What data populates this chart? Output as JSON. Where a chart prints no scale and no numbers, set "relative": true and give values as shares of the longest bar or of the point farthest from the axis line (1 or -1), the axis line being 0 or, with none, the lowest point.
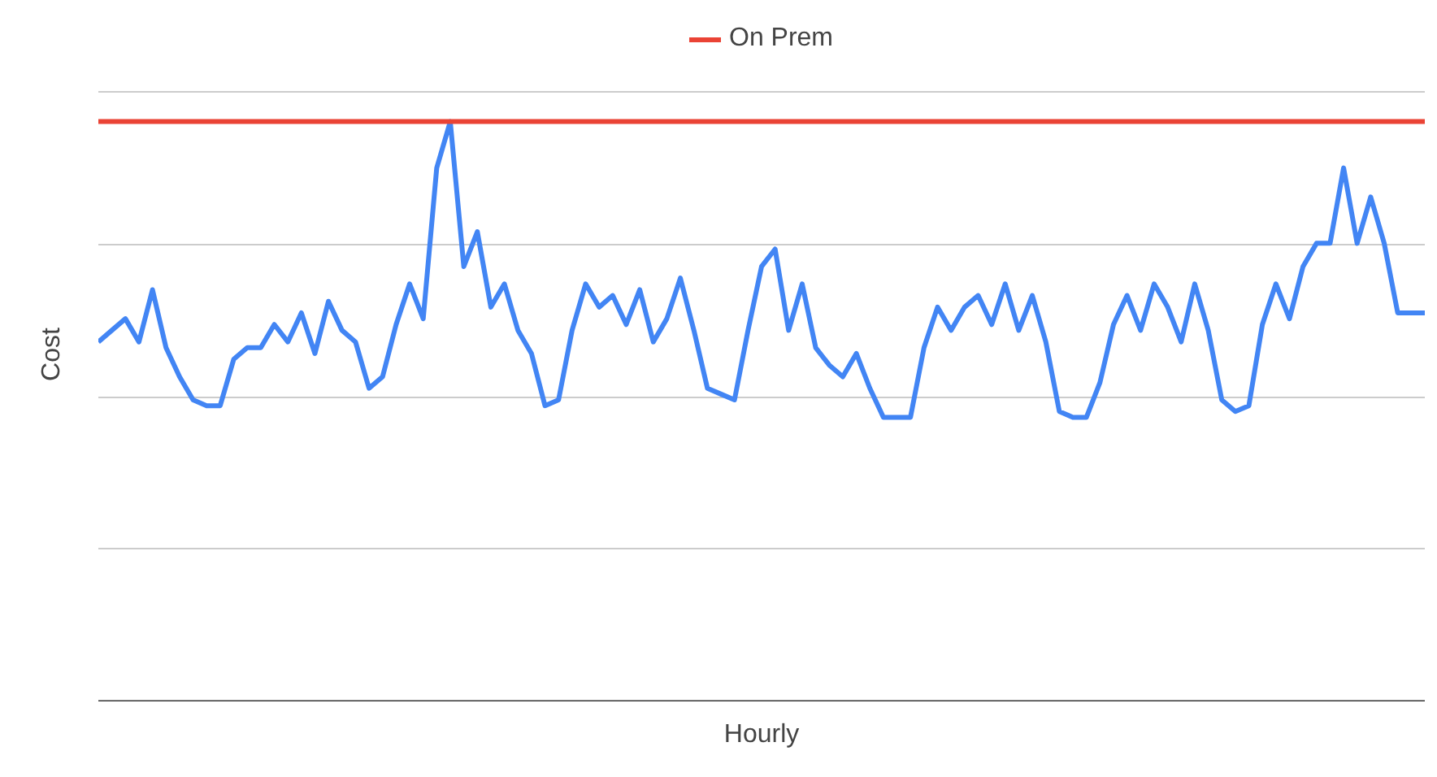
{
  "chart_data": {
    "type": "line",
    "relative": true,
    "xlabel": "Hourly",
    "ylabel": "Cost",
    "grid": "y",
    "legend": "top",
    "marker": "none",
    "line_style": "solid",
    "categories": [
      null,
      null,
      null,
      null,
      null,
      null,
      null,
      null,
      null,
      null,
      null,
      null,
      null,
      null,
      null,
      null,
      null,
      null,
      null,
      null,
      null,
      null,
      null,
      null,
      null,
      null,
      null,
      null,
      null,
      null,
      null,
      null,
      null,
      null,
      null,
      null,
      null,
      null,
      null,
      null,
      null,
      null,
      null,
      null,
      null,
      null,
      null,
      null,
      null,
      null,
      null,
      null,
      null,
      null,
      null,
      null,
      null,
      null,
      null,
      null,
      null,
      null,
      null,
      null,
      null,
      null,
      null,
      null,
      null,
      null,
      null,
      null,
      null,
      null,
      null,
      null,
      null,
      null,
      null,
      null,
      null,
      null,
      null,
      null,
      null,
      null,
      null,
      null,
      null,
      null,
      null,
      null,
      null,
      null,
      null,
      null,
      null,
      null,
      null
    ],
    "series": [
      {
        "color": "#4285f4",
        "values": [
          0.62,
          0.64,
          0.66,
          0.62,
          0.71,
          0.61,
          0.56,
          0.52,
          0.51,
          0.51,
          0.59,
          0.61,
          0.61,
          0.65,
          0.62,
          0.67,
          0.6,
          0.69,
          0.64,
          0.62,
          0.54,
          0.56,
          0.65,
          0.72,
          0.66,
          0.92,
          1.0,
          0.75,
          0.81,
          0.68,
          0.72,
          0.64,
          0.6,
          0.51,
          0.52,
          0.64,
          0.72,
          0.68,
          0.7,
          0.65,
          0.71,
          0.62,
          0.66,
          0.73,
          0.64,
          0.54,
          0.53,
          0.52,
          0.64,
          0.75,
          0.78,
          0.64,
          0.72,
          0.61,
          0.58,
          0.56,
          0.6,
          0.54,
          0.49,
          0.49,
          0.49,
          0.61,
          0.68,
          0.64,
          0.68,
          0.7,
          0.65,
          0.72,
          0.64,
          0.7,
          0.62,
          0.5,
          0.49,
          0.49,
          0.55,
          0.65,
          0.7,
          0.64,
          0.72,
          0.68,
          0.62,
          0.72,
          0.64,
          0.52,
          0.5,
          0.51,
          0.65,
          0.72,
          0.66,
          0.75,
          0.79,
          0.79,
          0.92,
          0.79,
          0.87,
          0.79,
          0.67,
          0.67,
          0.67
        ]
      },
      {
        "name": "On Prem",
        "color": "#ea4335",
        "values": [
          1,
          1,
          1,
          1,
          1,
          1,
          1,
          1,
          1,
          1,
          1,
          1,
          1,
          1,
          1,
          1,
          1,
          1,
          1,
          1,
          1,
          1,
          1,
          1,
          1,
          1,
          1,
          1,
          1,
          1,
          1,
          1,
          1,
          1,
          1,
          1,
          1,
          1,
          1,
          1,
          1,
          1,
          1,
          1,
          1,
          1,
          1,
          1,
          1,
          1,
          1,
          1,
          1,
          1,
          1,
          1,
          1,
          1,
          1,
          1,
          1,
          1,
          1,
          1,
          1,
          1,
          1,
          1,
          1,
          1,
          1,
          1,
          1,
          1,
          1,
          1,
          1,
          1,
          1,
          1,
          1,
          1,
          1,
          1,
          1,
          1,
          1,
          1,
          1,
          1,
          1,
          1,
          1,
          1,
          1,
          1,
          1,
          1,
          1
        ]
      }
    ]
  }
}
